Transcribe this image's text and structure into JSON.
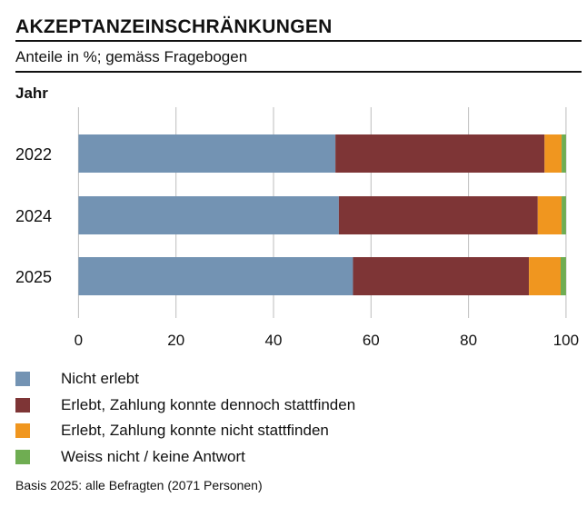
{
  "title": "AKZEPTANZEINSCHRÄNKUNGEN",
  "subtitle": "Anteile in %; gemäss Fragebogen",
  "note": "Basis 2025: alle Befragten (2071 Personen)",
  "chart_data": {
    "type": "bar",
    "orientation": "horizontal",
    "stacked": true,
    "ylabel": "Jahr",
    "xlabel": "",
    "categories": [
      "2022",
      "2024",
      "2025"
    ],
    "xlim": [
      0,
      100
    ],
    "xticks": [
      "0",
      "20",
      "40",
      "60",
      "80",
      "100"
    ],
    "grid": true,
    "legend_position": "bottom",
    "series": [
      {
        "name": "Nicht erlebt",
        "color": "#7393b3",
        "values": [
          52.7,
          53.4,
          56.3
        ]
      },
      {
        "name": "Erlebt, Zahlung konnte dennoch stattfinden",
        "color": "#7e3536",
        "values": [
          42.9,
          40.8,
          36.1
        ]
      },
      {
        "name": "Erlebt, Zahlung konnte nicht stattfinden",
        "color": "#f0961f",
        "values": [
          3.5,
          4.9,
          6.5
        ]
      },
      {
        "name": "Weiss nicht / keine Antwort",
        "color": "#6fad52",
        "values": [
          0.9,
          0.9,
          1.1
        ]
      }
    ]
  }
}
